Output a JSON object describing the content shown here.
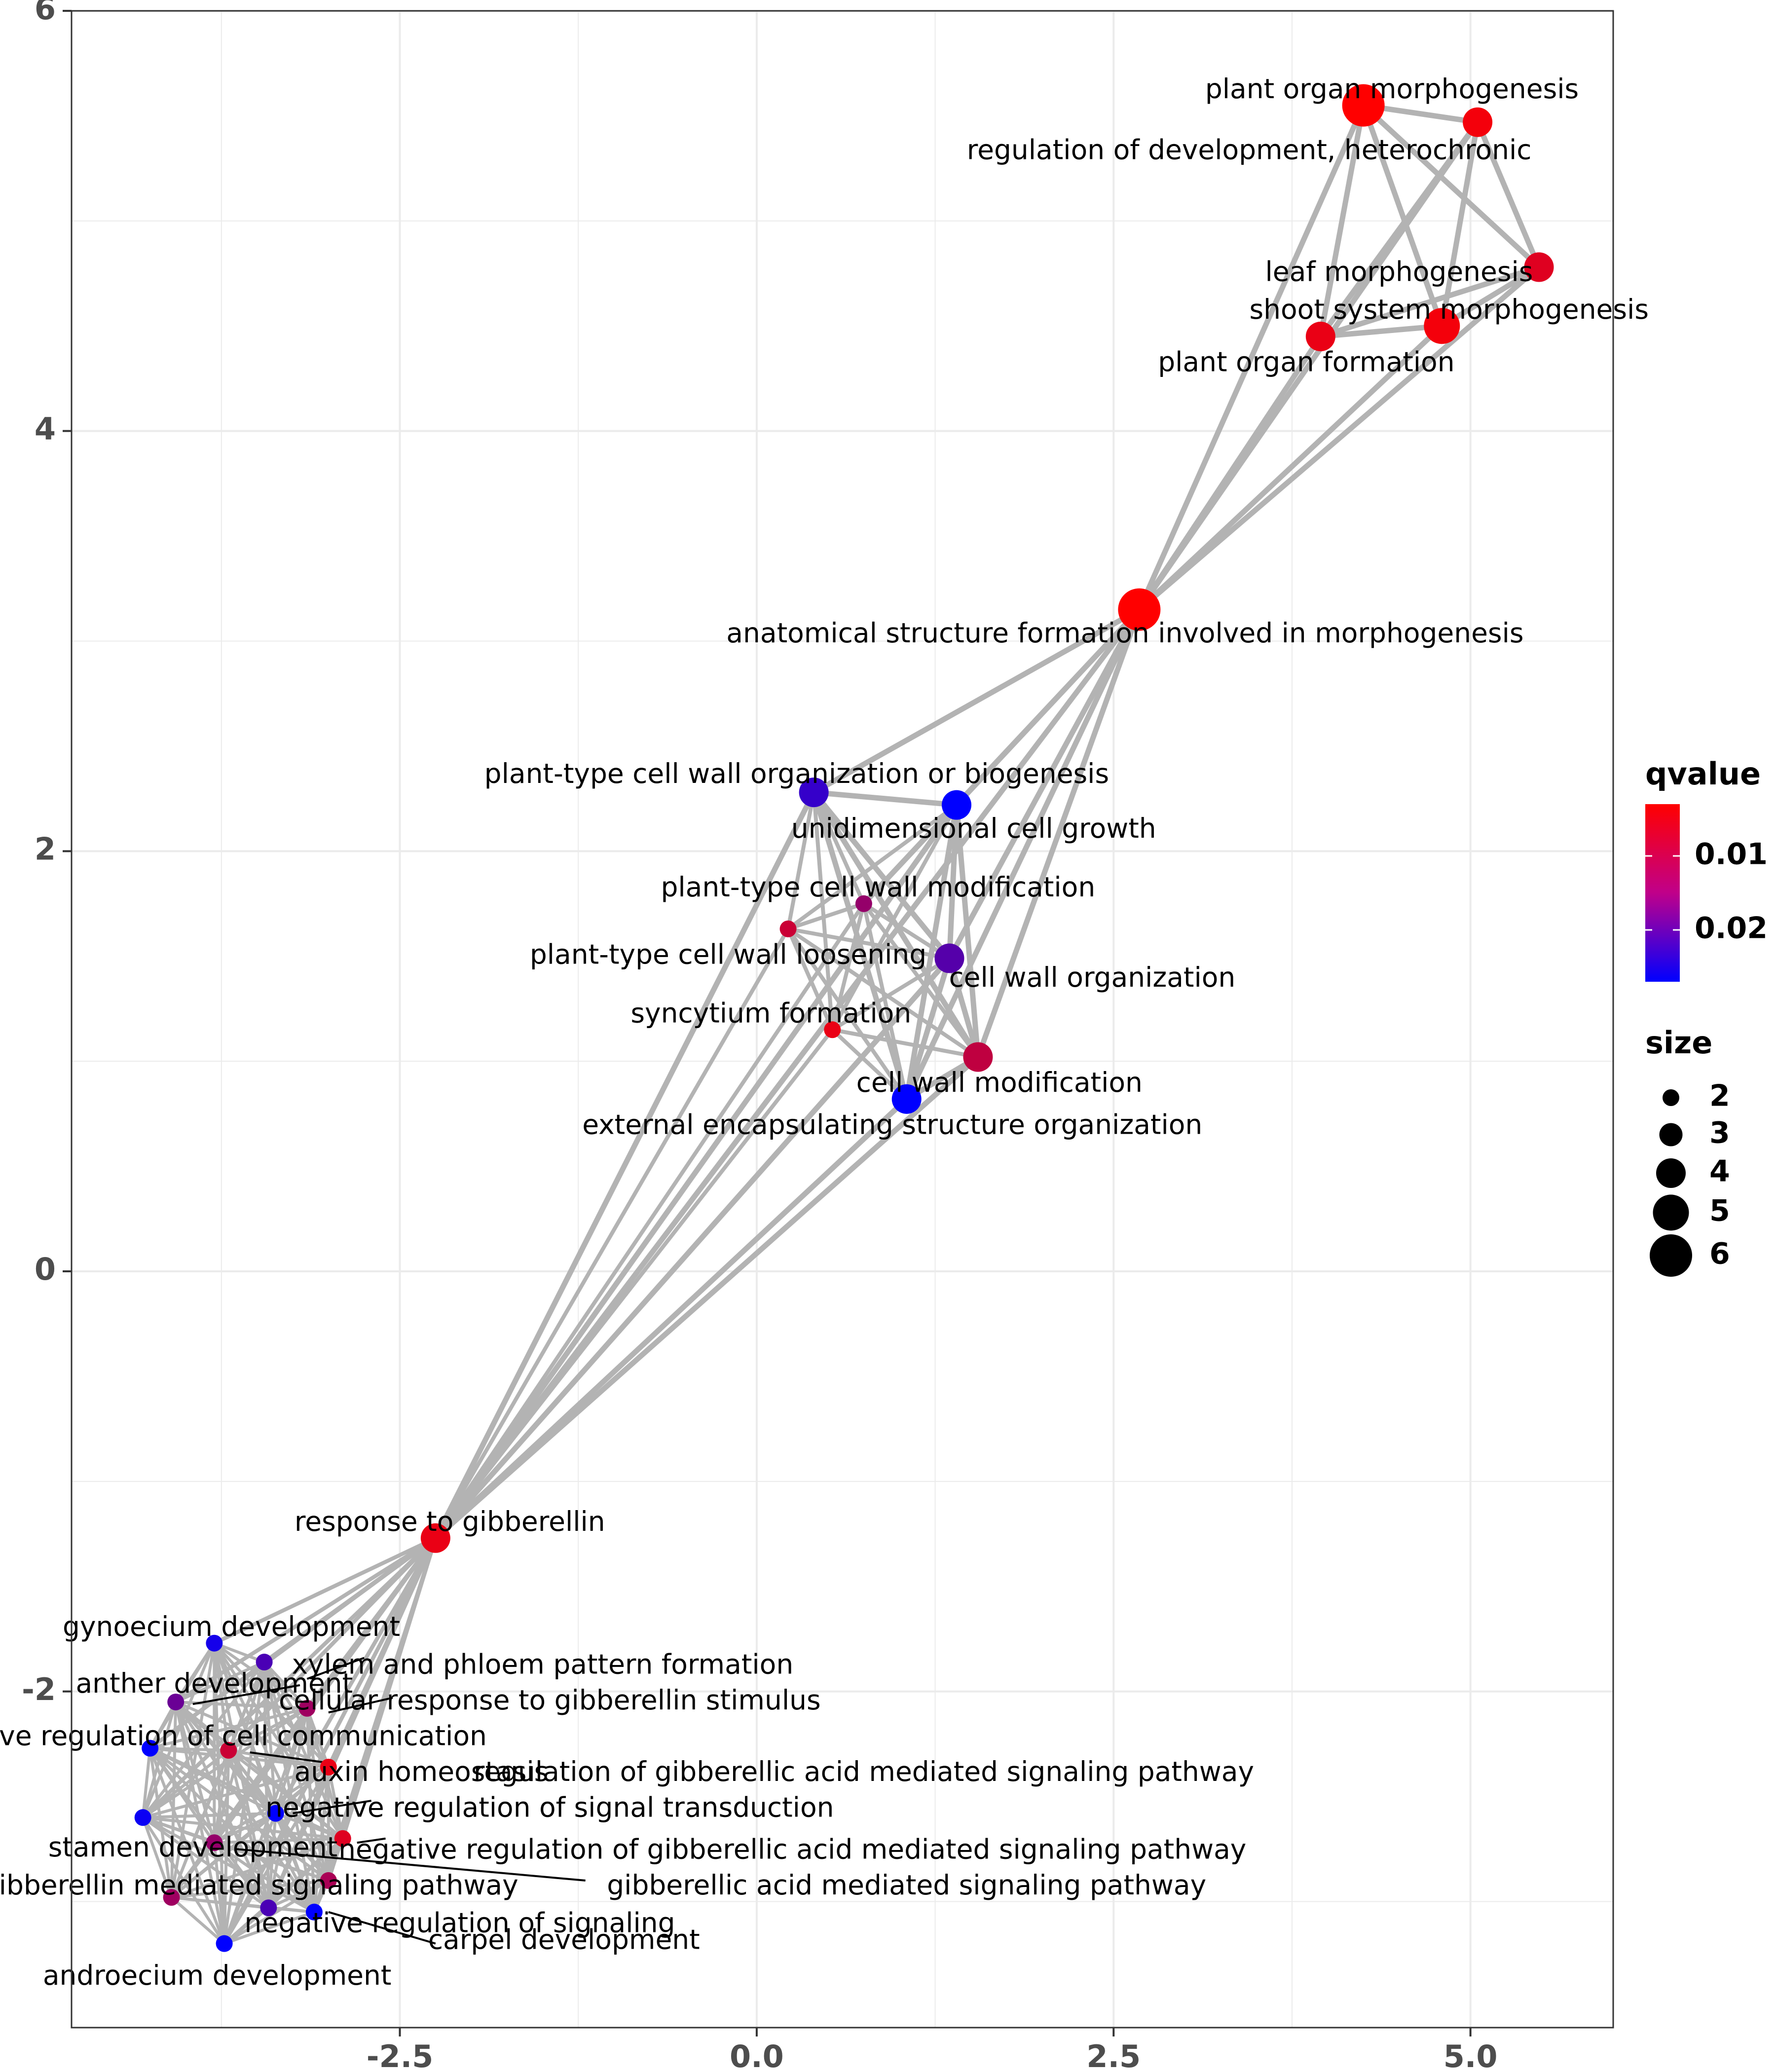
{
  "chart_data": {
    "type": "network",
    "xlim": [
      -4.8,
      6.0
    ],
    "ylim": [
      -3.6,
      6.0
    ],
    "x_ticks": [
      -2.5,
      0.0,
      2.5,
      5.0
    ],
    "x_tick_labels": [
      "-2.5",
      "0.0",
      "2.5",
      "5.0"
    ],
    "y_ticks": [
      -2,
      0,
      2,
      4,
      6
    ],
    "y_tick_labels": [
      "-2",
      "0",
      "2",
      "4",
      "6"
    ],
    "grid": true,
    "colors": {
      "q_low": "#ff0000",
      "q_high": "#0000ff",
      "edge": "#b3b3b3",
      "grid": "#ebebeb",
      "panel_border": "#333333"
    },
    "legend": {
      "position": "right",
      "color_title": "qvalue",
      "color_range": [
        0.003,
        0.027
      ],
      "color_ticks": [
        0.01,
        0.02
      ],
      "color_tick_labels": [
        "0.01",
        "0.02"
      ],
      "size_title": "size",
      "size_values": [
        2,
        3,
        4,
        5,
        6
      ],
      "size_labels": [
        "2",
        "3",
        "4",
        "5",
        "6"
      ]
    },
    "nodes": [
      {
        "id": "pom",
        "label": "plant organ morphogenesis",
        "x": 4.25,
        "y": 5.55,
        "size": 6,
        "q": 0.003,
        "lx": 4.45,
        "ly": 5.62
      },
      {
        "id": "rdh",
        "label": "regulation of development, heterochronic",
        "x": 5.05,
        "y": 5.47,
        "size": 4,
        "q": 0.004,
        "lx": 3.45,
        "ly": 5.33
      },
      {
        "id": "lm",
        "label": "leaf morphogenesis",
        "x": 5.48,
        "y": 4.78,
        "size": 4,
        "q": 0.006,
        "lx": 4.5,
        "ly": 4.75
      },
      {
        "id": "ssm",
        "label": "shoot system morphogenesis",
        "x": 4.8,
        "y": 4.5,
        "size": 5,
        "q": 0.004,
        "lx": 4.85,
        "ly": 4.57
      },
      {
        "id": "pof",
        "label": "plant organ formation",
        "x": 3.95,
        "y": 4.45,
        "size": 4,
        "q": 0.005,
        "lx": 3.85,
        "ly": 4.32
      },
      {
        "id": "asf",
        "label": "anatomical structure formation involved in morphogenesis",
        "x": 2.68,
        "y": 3.15,
        "size": 6,
        "q": 0.003,
        "lx": 2.58,
        "ly": 3.03
      },
      {
        "id": "ptcwob",
        "label": "plant-type cell wall organization or biogenesis",
        "x": 0.4,
        "y": 2.28,
        "size": 4,
        "q": 0.022,
        "lx": 0.28,
        "ly": 2.36
      },
      {
        "id": "ucg",
        "label": "unidimensional cell growth",
        "x": 1.4,
        "y": 2.22,
        "size": 4,
        "q": 0.027,
        "lx": 1.52,
        "ly": 2.1
      },
      {
        "id": "ptcwm",
        "label": "plant-type cell wall modification",
        "x": 0.75,
        "y": 1.75,
        "size": 2,
        "q": 0.013,
        "lx": 0.85,
        "ly": 1.82
      },
      {
        "id": "ptcwl",
        "label": "plant-type cell wall loosening",
        "x": 0.22,
        "y": 1.63,
        "size": 2,
        "q": 0.008,
        "lx": -0.2,
        "ly": 1.5
      },
      {
        "id": "cwo",
        "label": "cell wall organization",
        "x": 1.35,
        "y": 1.49,
        "size": 4,
        "q": 0.019,
        "lx": 2.35,
        "ly": 1.39
      },
      {
        "id": "sf",
        "label": "syncytium formation",
        "x": 0.53,
        "y": 1.15,
        "size": 2,
        "q": 0.005,
        "lx": 0.1,
        "ly": 1.22
      },
      {
        "id": "cwm",
        "label": "cell wall modification",
        "x": 1.55,
        "y": 1.02,
        "size": 4,
        "q": 0.009,
        "lx": 1.7,
        "ly": 0.89
      },
      {
        "id": "eso",
        "label": "external encapsulating structure organization",
        "x": 1.05,
        "y": 0.82,
        "size": 4,
        "q": 0.027,
        "lx": 0.95,
        "ly": 0.69
      },
      {
        "id": "rtg",
        "label": "response to gibberellin",
        "x": -2.25,
        "y": -1.27,
        "size": 4,
        "q": 0.005,
        "lx": -2.15,
        "ly": -1.2
      },
      {
        "id": "gd",
        "label": "gynoecium development",
        "x": -3.8,
        "y": -1.77,
        "size": 2,
        "q": 0.025,
        "lx": -3.68,
        "ly": -1.7
      },
      {
        "id": "xppf",
        "label": "xylem and phloem pattern formation",
        "x": -3.45,
        "y": -1.86,
        "size": 2,
        "q": 0.02,
        "lx": -1.5,
        "ly": -1.88
      },
      {
        "id": "ad",
        "label": "anther development",
        "x": -4.07,
        "y": -2.05,
        "size": 2,
        "q": 0.017,
        "lx": -3.8,
        "ly": -1.97
      },
      {
        "id": "crgs",
        "label": "cellular response to gibberellin stimulus",
        "x": -3.15,
        "y": -2.08,
        "size": 2,
        "q": 0.012,
        "lx": -1.45,
        "ly": -2.05
      },
      {
        "id": "nrcc",
        "label": "negative regulation of cell communication",
        "x": -4.25,
        "y": -2.27,
        "size": 2,
        "q": 0.027,
        "lx": -3.9,
        "ly": -2.22
      },
      {
        "id": "ah",
        "label": "auxin homeostasis",
        "x": -3.7,
        "y": -2.28,
        "size": 2,
        "q": 0.008,
        "lx": -2.35,
        "ly": -2.39
      },
      {
        "id": "rgams",
        "label": "regulation of gibberellic acid mediated signaling pathway",
        "x": -3.0,
        "y": -2.36,
        "size": 2,
        "q": 0.005,
        "lx": 0.75,
        "ly": -2.39
      },
      {
        "id": "nrst",
        "label": "negative regulation of signal transduction",
        "x": -3.37,
        "y": -2.58,
        "size": 2,
        "q": 0.027,
        "lx": -1.45,
        "ly": -2.56
      },
      {
        "id": "sd",
        "label": "stamen development",
        "x": -4.3,
        "y": -2.6,
        "size": 2,
        "q": 0.026,
        "lx": -3.95,
        "ly": -2.75
      },
      {
        "id": "nrgams",
        "label": "negative regulation of gibberellic acid mediated signaling pathway",
        "x": -2.9,
        "y": -2.7,
        "size": 2,
        "q": 0.006,
        "lx": 0.25,
        "ly": -2.76
      },
      {
        "id": "gmsp",
        "label": "gibberellin mediated signaling pathway",
        "x": -3.8,
        "y": -2.72,
        "size": 2,
        "q": 0.013,
        "lx": -3.55,
        "ly": -2.93
      },
      {
        "id": "gamsp",
        "label": "gibberellic acid mediated signaling pathway",
        "x": -3.0,
        "y": -2.9,
        "size": 2,
        "q": 0.011,
        "lx": 1.05,
        "ly": -2.93
      },
      {
        "id": "nrs",
        "label": "negative regulation of signaling",
        "x": -3.42,
        "y": -3.03,
        "size": 2,
        "q": 0.02,
        "lx": -2.08,
        "ly": -3.11
      },
      {
        "id": "cd",
        "label": "carpel development",
        "x": -3.1,
        "y": -3.05,
        "size": 2,
        "q": 0.027,
        "lx": -1.35,
        "ly": -3.19
      },
      {
        "id": "gsp2",
        "label": "",
        "x": -4.1,
        "y": -2.98,
        "size": 2,
        "q": 0.012,
        "lx": 0,
        "ly": 0
      },
      {
        "id": "and",
        "label": "androecium development",
        "x": -3.73,
        "y": -3.2,
        "size": 2,
        "q": 0.027,
        "lx": -3.78,
        "ly": -3.36
      }
    ],
    "label_leaders": [
      {
        "from": "xppf",
        "lx": -2.75,
        "ly": -1.84,
        "lx2": -3.15,
        "ly2": -1.94
      },
      {
        "from": "crgs",
        "lx": -2.55,
        "ly": -2.03,
        "lx2": -3.0,
        "ly2": -2.1
      },
      {
        "from": "ah",
        "lx": -3.0,
        "ly": -2.34,
        "lx2": -3.55,
        "ly2": -2.29
      },
      {
        "from": "nrst",
        "lx": -2.7,
        "ly": -2.52,
        "lx2": -3.25,
        "ly2": -2.58
      },
      {
        "from": "nrgams",
        "lx": -2.6,
        "ly": -2.7,
        "lx2": -2.8,
        "ly2": -2.72
      },
      {
        "from": "gmsp",
        "lx": -1.2,
        "ly": -2.9,
        "lx2": -3.65,
        "ly2": -2.75
      },
      {
        "from": "cd",
        "lx": -2.25,
        "ly": -3.2,
        "lx2": -3.0,
        "ly2": -3.05
      },
      {
        "from": "ad",
        "lx": -3.2,
        "ly": -1.97,
        "lx2": -3.95,
        "ly2": -2.06
      }
    ],
    "edges": [
      [
        "pom",
        "rdh"
      ],
      [
        "pom",
        "lm"
      ],
      [
        "pom",
        "ssm"
      ],
      [
        "pom",
        "pof"
      ],
      [
        "pom",
        "asf"
      ],
      [
        "rdh",
        "lm"
      ],
      [
        "rdh",
        "ssm"
      ],
      [
        "rdh",
        "pof"
      ],
      [
        "rdh",
        "asf"
      ],
      [
        "lm",
        "ssm"
      ],
      [
        "lm",
        "pof"
      ],
      [
        "lm",
        "asf"
      ],
      [
        "ssm",
        "pof"
      ],
      [
        "ssm",
        "asf"
      ],
      [
        "pof",
        "asf"
      ],
      [
        "asf",
        "ptcwob"
      ],
      [
        "asf",
        "ucg"
      ],
      [
        "asf",
        "cwo"
      ],
      [
        "asf",
        "cwm"
      ],
      [
        "asf",
        "eso"
      ],
      [
        "asf",
        "rtg"
      ],
      [
        "asf",
        "ptcwm"
      ],
      [
        "ptcwob",
        "ucg"
      ],
      [
        "ptcwob",
        "ptcwm"
      ],
      [
        "ptcwob",
        "ptcwl"
      ],
      [
        "ptcwob",
        "cwo"
      ],
      [
        "ptcwob",
        "sf"
      ],
      [
        "ptcwob",
        "cwm"
      ],
      [
        "ptcwob",
        "eso"
      ],
      [
        "ucg",
        "ptcwm"
      ],
      [
        "ucg",
        "ptcwl"
      ],
      [
        "ucg",
        "cwo"
      ],
      [
        "ucg",
        "sf"
      ],
      [
        "ucg",
        "cwm"
      ],
      [
        "ucg",
        "eso"
      ],
      [
        "ptcwm",
        "ptcwl"
      ],
      [
        "ptcwm",
        "cwo"
      ],
      [
        "ptcwm",
        "sf"
      ],
      [
        "ptcwm",
        "cwm"
      ],
      [
        "ptcwm",
        "eso"
      ],
      [
        "ptcwl",
        "cwo"
      ],
      [
        "ptcwl",
        "sf"
      ],
      [
        "ptcwl",
        "cwm"
      ],
      [
        "ptcwl",
        "eso"
      ],
      [
        "cwo",
        "sf"
      ],
      [
        "cwo",
        "cwm"
      ],
      [
        "cwo",
        "eso"
      ],
      [
        "sf",
        "cwm"
      ],
      [
        "sf",
        "eso"
      ],
      [
        "cwm",
        "eso"
      ],
      [
        "rtg",
        "ptcwob"
      ],
      [
        "rtg",
        "ucg"
      ],
      [
        "rtg",
        "ptcwm"
      ],
      [
        "rtg",
        "ptcwl"
      ],
      [
        "rtg",
        "cwo"
      ],
      [
        "rtg",
        "sf"
      ],
      [
        "rtg",
        "cwm"
      ],
      [
        "rtg",
        "eso"
      ],
      [
        "rtg",
        "gd"
      ],
      [
        "rtg",
        "xppf"
      ],
      [
        "rtg",
        "ad"
      ],
      [
        "rtg",
        "crgs"
      ],
      [
        "rtg",
        "nrcc"
      ],
      [
        "rtg",
        "ah"
      ],
      [
        "rtg",
        "rgams"
      ],
      [
        "rtg",
        "nrst"
      ],
      [
        "rtg",
        "sd"
      ],
      [
        "rtg",
        "nrgams"
      ],
      [
        "rtg",
        "gmsp"
      ],
      [
        "rtg",
        "gamsp"
      ],
      [
        "rtg",
        "nrs"
      ],
      [
        "rtg",
        "cd"
      ],
      [
        "rtg",
        "and"
      ],
      [
        "rtg",
        "gsp2"
      ]
    ],
    "cluster_mesh": [
      "gd",
      "xppf",
      "ad",
      "crgs",
      "nrcc",
      "ah",
      "rgams",
      "nrst",
      "sd",
      "nrgams",
      "gmsp",
      "gamsp",
      "nrs",
      "cd",
      "gsp2",
      "and"
    ]
  }
}
